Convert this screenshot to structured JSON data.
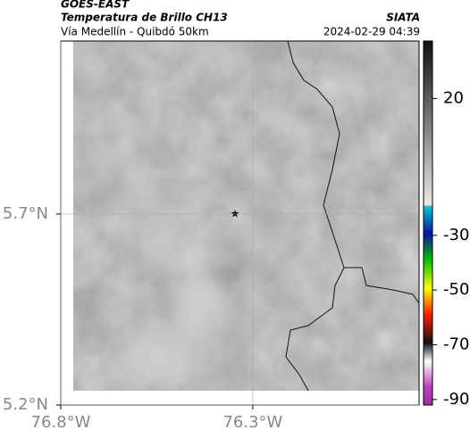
{
  "header": {
    "title": "GOES-EAST",
    "subtitle": "Temperatura de Brillo CH13",
    "location": "Vía Medellín - Quibdó 50km",
    "source": "SIATA",
    "timestamp": "2024-02-29 04:39"
  },
  "map": {
    "xlim": [
      -76.8,
      -75.867
    ],
    "ylim": [
      5.2,
      6.153
    ],
    "xticks": [
      {
        "value": -76.8,
        "label": "76.8°W"
      },
      {
        "value": -76.3,
        "label": "76.3°W"
      }
    ],
    "yticks": [
      {
        "value": 5.7,
        "label": "5.7°N"
      },
      {
        "value": 5.2,
        "label": "5.2°N"
      }
    ]
  },
  "colorbar": {
    "lim": [
      -92,
      41
    ],
    "ticks": [
      20,
      -30,
      -50,
      -70,
      -90
    ]
  }
}
